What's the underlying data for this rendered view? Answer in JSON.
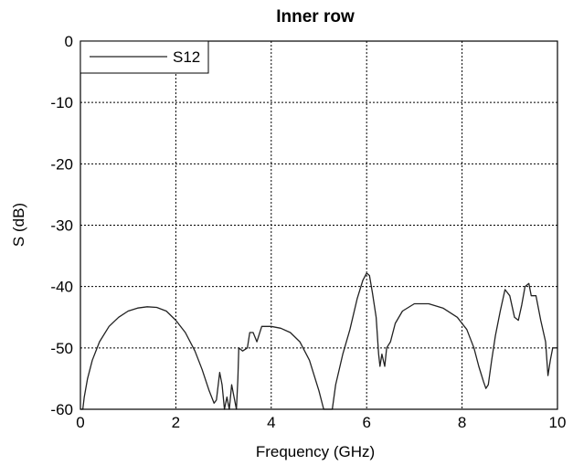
{
  "chart_data": {
    "type": "line",
    "title": "Inner row",
    "xlabel": "Frequency (GHz)",
    "ylabel": "S (dB)",
    "xlim": [
      0,
      10
    ],
    "ylim": [
      -60,
      0
    ],
    "x_ticks": [
      0,
      2,
      4,
      6,
      8,
      10
    ],
    "y_ticks": [
      0,
      -10,
      -20,
      -30,
      -40,
      -50,
      -60
    ],
    "x_tick_labels": [
      "0",
      "2",
      "4",
      "6",
      "8",
      "10"
    ],
    "y_tick_labels": [
      "0",
      "-10",
      "-20",
      "-30",
      "-40",
      "-50",
      "-60"
    ],
    "grid": true,
    "legend_position": "top-left",
    "series": [
      {
        "name": "S12",
        "color": "#222222",
        "points": [
          [
            0.0,
            -60
          ],
          [
            0.05,
            -60
          ],
          [
            0.08,
            -58
          ],
          [
            0.15,
            -55
          ],
          [
            0.25,
            -52
          ],
          [
            0.4,
            -49
          ],
          [
            0.6,
            -46.5
          ],
          [
            0.8,
            -45
          ],
          [
            1.0,
            -44
          ],
          [
            1.2,
            -43.5
          ],
          [
            1.4,
            -43.3
          ],
          [
            1.6,
            -43.4
          ],
          [
            1.8,
            -44
          ],
          [
            2.0,
            -45.5
          ],
          [
            2.2,
            -47.5
          ],
          [
            2.4,
            -50.5
          ],
          [
            2.55,
            -53.5
          ],
          [
            2.7,
            -57
          ],
          [
            2.8,
            -59
          ],
          [
            2.85,
            -58.5
          ],
          [
            2.92,
            -54
          ],
          [
            2.97,
            -56
          ],
          [
            3.02,
            -60
          ],
          [
            3.07,
            -58
          ],
          [
            3.12,
            -60
          ],
          [
            3.17,
            -56
          ],
          [
            3.22,
            -58
          ],
          [
            3.27,
            -60
          ],
          [
            3.3,
            -55
          ],
          [
            3.32,
            -50
          ],
          [
            3.4,
            -50.5
          ],
          [
            3.5,
            -50
          ],
          [
            3.55,
            -47.5
          ],
          [
            3.62,
            -47.5
          ],
          [
            3.7,
            -49
          ],
          [
            3.8,
            -46.5
          ],
          [
            4.0,
            -46.5
          ],
          [
            4.2,
            -46.8
          ],
          [
            4.4,
            -47.5
          ],
          [
            4.6,
            -49
          ],
          [
            4.8,
            -52
          ],
          [
            5.0,
            -57
          ],
          [
            5.1,
            -60
          ],
          [
            5.28,
            -60
          ],
          [
            5.35,
            -56
          ],
          [
            5.5,
            -51
          ],
          [
            5.65,
            -47
          ],
          [
            5.8,
            -42
          ],
          [
            5.92,
            -39
          ],
          [
            6.0,
            -37.8
          ],
          [
            6.06,
            -38.2
          ],
          [
            6.12,
            -41
          ],
          [
            6.2,
            -45
          ],
          [
            6.25,
            -51
          ],
          [
            6.28,
            -53
          ],
          [
            6.32,
            -51
          ],
          [
            6.38,
            -53
          ],
          [
            6.42,
            -50
          ],
          [
            6.5,
            -49
          ],
          [
            6.6,
            -46
          ],
          [
            6.75,
            -44
          ],
          [
            7.0,
            -42.8
          ],
          [
            7.3,
            -42.8
          ],
          [
            7.6,
            -43.5
          ],
          [
            7.9,
            -45
          ],
          [
            8.1,
            -47
          ],
          [
            8.25,
            -50
          ],
          [
            8.35,
            -53
          ],
          [
            8.45,
            -55.5
          ],
          [
            8.5,
            -56.6
          ],
          [
            8.55,
            -56
          ],
          [
            8.62,
            -52
          ],
          [
            8.7,
            -48
          ],
          [
            8.8,
            -44
          ],
          [
            8.9,
            -40.5
          ],
          [
            9.0,
            -41.5
          ],
          [
            9.1,
            -45
          ],
          [
            9.18,
            -45.5
          ],
          [
            9.25,
            -43
          ],
          [
            9.32,
            -40
          ],
          [
            9.4,
            -39.5
          ],
          [
            9.45,
            -41.5
          ],
          [
            9.55,
            -41.5
          ],
          [
            9.65,
            -45.5
          ],
          [
            9.75,
            -49
          ],
          [
            9.8,
            -54.5
          ],
          [
            9.85,
            -52
          ],
          [
            9.9,
            -50
          ],
          [
            10.0,
            -50
          ]
        ]
      }
    ]
  }
}
